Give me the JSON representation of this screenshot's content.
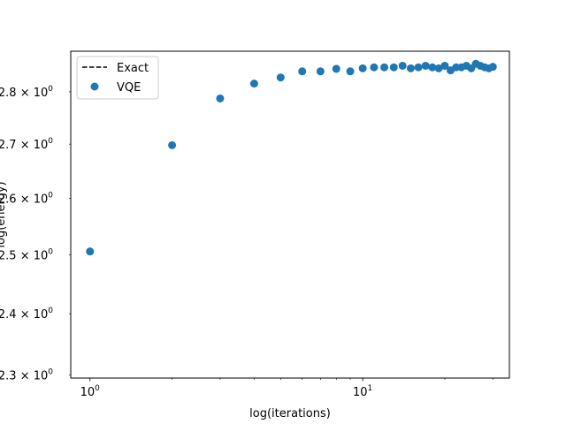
{
  "chart_data": {
    "type": "scatter",
    "xlabel": "log(iterations)",
    "ylabel": "log(energy)",
    "xscale": "log",
    "yscale": "log",
    "xlim": [
      0.85,
      34.5
    ],
    "ylim": [
      2.295,
      2.88
    ],
    "grid": false,
    "legend_position": "upper-left",
    "x_ticks": [
      {
        "value": 1,
        "label": "10",
        "exp": "0"
      },
      {
        "value": 10,
        "label": "10",
        "exp": "1"
      }
    ],
    "y_ticks": [
      {
        "value": 2.3,
        "label": "2.3 × 10",
        "exp": "0"
      },
      {
        "value": 2.4,
        "label": "2.4 × 10",
        "exp": "0"
      },
      {
        "value": 2.5,
        "label": "2.5 × 10",
        "exp": "0"
      },
      {
        "value": 2.6,
        "label": "2.6 × 10",
        "exp": "0"
      },
      {
        "value": 2.7,
        "label": "2.7 × 10",
        "exp": "0"
      },
      {
        "value": 2.8,
        "label": "2.8 × 10",
        "exp": "0"
      }
    ],
    "series": [
      {
        "name": "Exact",
        "style": "dashed-line",
        "color": "#000000",
        "x": [],
        "y": []
      },
      {
        "name": "VQE",
        "style": "marker",
        "color": "#1f77b4",
        "x": [
          1,
          2,
          3,
          4,
          5,
          6,
          7,
          8,
          9,
          10,
          11,
          12,
          13,
          14,
          15,
          16,
          17,
          18,
          19,
          20,
          21,
          22,
          23,
          24,
          25,
          26,
          27,
          28,
          29,
          30
        ],
        "y": [
          2.506,
          2.698,
          2.787,
          2.816,
          2.828,
          2.84,
          2.84,
          2.845,
          2.84,
          2.846,
          2.848,
          2.848,
          2.848,
          2.851,
          2.846,
          2.848,
          2.851,
          2.848,
          2.846,
          2.851,
          2.842,
          2.848,
          2.848,
          2.851,
          2.846,
          2.855,
          2.851,
          2.848,
          2.846,
          2.849
        ]
      }
    ]
  }
}
